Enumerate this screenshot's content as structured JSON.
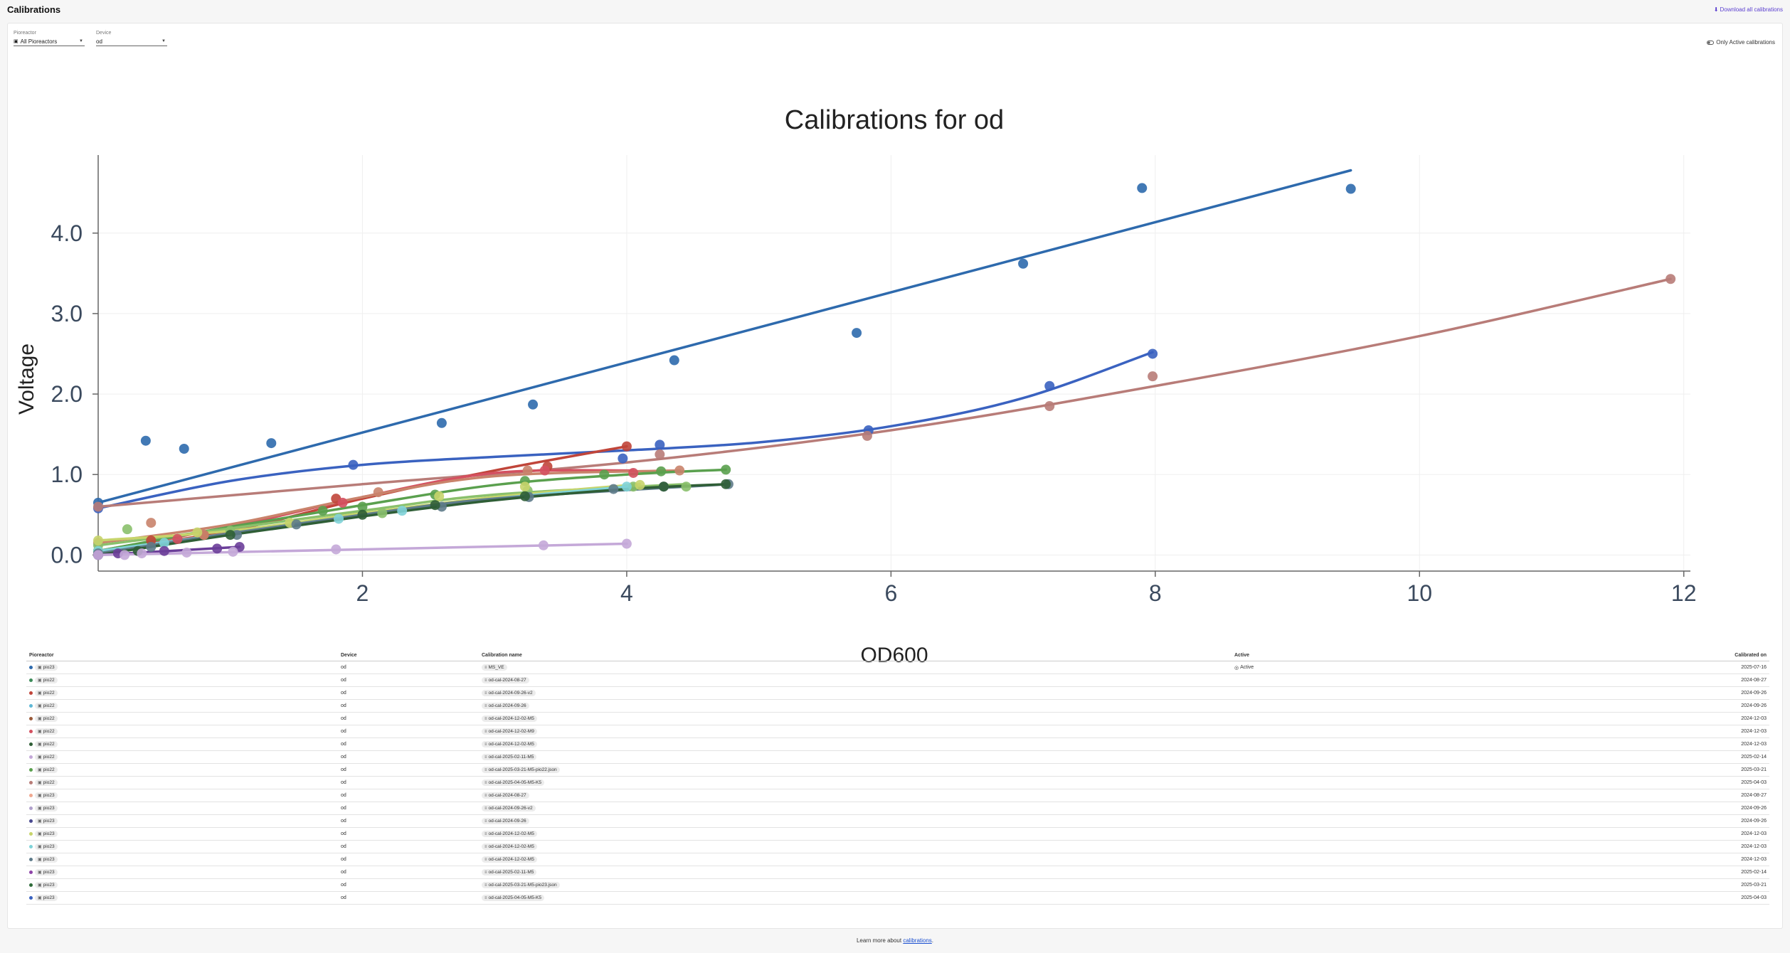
{
  "header": {
    "title": "Calibrations",
    "download_label": "Download all calibrations",
    "download_icon": "download-icon"
  },
  "filters": {
    "pioreactor_label": "Pioreactor",
    "pioreactor_value": "All Pioreactors",
    "device_label": "Device",
    "device_value": "od"
  },
  "toggle": {
    "label": "Only Active calibrations",
    "icon": "toggle-off-icon"
  },
  "chart_data": {
    "type": "scatter",
    "title": "Calibrations for od",
    "xlabel": "OD600",
    "ylabel": "Voltage",
    "xlim": [
      0,
      12.05
    ],
    "ylim": [
      -0.2,
      4.97
    ],
    "xticks": [
      2,
      4,
      6,
      8,
      10,
      12
    ],
    "yticks": [
      0,
      1,
      2,
      3,
      4
    ],
    "xtick_labels": [
      "2",
      "4",
      "6",
      "8",
      "10",
      "12"
    ],
    "ytick_labels": [
      "0.0",
      "1.0",
      "2.0",
      "3.0",
      "4.0"
    ],
    "grid": true,
    "series": [
      {
        "color": "#2e6aad",
        "points": [
          [
            0,
            0.65
          ],
          [
            0.36,
            1.42
          ],
          [
            0.65,
            1.32
          ],
          [
            1.31,
            1.39
          ],
          [
            2.6,
            1.64
          ],
          [
            3.29,
            1.87
          ],
          [
            4.36,
            2.42
          ],
          [
            5.74,
            2.76
          ],
          [
            7.0,
            3.62
          ],
          [
            7.9,
            4.56
          ],
          [
            9.48,
            4.55
          ]
        ],
        "curve": [
          [
            0,
            0.65
          ],
          [
            9.48,
            4.78
          ]
        ]
      },
      {
        "color": "#3a62c0",
        "points": [
          [
            0,
            0.58
          ],
          [
            1.93,
            1.12
          ],
          [
            4.25,
            1.37
          ],
          [
            5.83,
            1.55
          ],
          [
            7.2,
            2.1
          ],
          [
            7.98,
            2.5
          ],
          [
            3.97,
            1.2
          ]
        ],
        "curve": [
          [
            0,
            0.58
          ],
          [
            1.0,
            0.92
          ],
          [
            2.0,
            1.12
          ],
          [
            3.0,
            1.22
          ],
          [
            4.0,
            1.3
          ],
          [
            5.0,
            1.4
          ],
          [
            6.0,
            1.6
          ],
          [
            7.0,
            1.95
          ],
          [
            7.98,
            2.52
          ]
        ]
      },
      {
        "color": "#b87c78",
        "points": [
          [
            0,
            0.6
          ],
          [
            4.25,
            1.25
          ],
          [
            5.82,
            1.48
          ],
          [
            7.2,
            1.85
          ],
          [
            7.98,
            2.22
          ],
          [
            11.9,
            3.43
          ]
        ],
        "curve": [
          [
            0,
            0.6
          ],
          [
            2,
            0.88
          ],
          [
            4,
            1.15
          ],
          [
            6,
            1.55
          ],
          [
            8,
            2.1
          ],
          [
            10,
            2.72
          ],
          [
            11.9,
            3.43
          ]
        ]
      },
      {
        "color": "#c0453a",
        "points": [
          [
            0,
            0.05
          ],
          [
            0.4,
            0.18
          ],
          [
            1.8,
            0.7
          ],
          [
            3.4,
            1.1
          ],
          [
            4.0,
            1.35
          ],
          [
            0.8,
            0.25
          ]
        ],
        "curve": [
          [
            0,
            0.05
          ],
          [
            1,
            0.3
          ],
          [
            2,
            0.7
          ],
          [
            3,
            1.05
          ],
          [
            4,
            1.35
          ]
        ]
      },
      {
        "color": "#d45060",
        "points": [
          [
            0,
            0.05
          ],
          [
            1.85,
            0.65
          ],
          [
            3.38,
            1.05
          ],
          [
            4.05,
            1.02
          ],
          [
            0.6,
            0.2
          ]
        ],
        "curve": [
          [
            0,
            0.05
          ],
          [
            1,
            0.35
          ],
          [
            2,
            0.72
          ],
          [
            3,
            1.02
          ],
          [
            4.05,
            1.05
          ]
        ]
      },
      {
        "color": "#c9836b",
        "points": [
          [
            0,
            0.15
          ],
          [
            0.4,
            0.4
          ],
          [
            0.8,
            0.25
          ],
          [
            2.12,
            0.78
          ],
          [
            3.25,
            1.05
          ],
          [
            4.4,
            1.05
          ]
        ],
        "curve": [
          [
            0,
            0.15
          ],
          [
            1,
            0.38
          ],
          [
            2,
            0.72
          ],
          [
            3,
            0.98
          ],
          [
            4.4,
            1.05
          ]
        ]
      },
      {
        "color": "#5aa04e",
        "points": [
          [
            0,
            0.05
          ],
          [
            1.7,
            0.55
          ],
          [
            2.0,
            0.6
          ],
          [
            2.55,
            0.75
          ],
          [
            3.23,
            0.92
          ],
          [
            3.83,
            1.0
          ],
          [
            4.26,
            1.04
          ],
          [
            4.75,
            1.06
          ]
        ],
        "curve": [
          [
            0,
            0.05
          ],
          [
            1,
            0.35
          ],
          [
            2,
            0.62
          ],
          [
            3,
            0.87
          ],
          [
            4,
            1.0
          ],
          [
            4.75,
            1.06
          ]
        ]
      },
      {
        "color": "#8ac06b",
        "points": [
          [
            0,
            0.12
          ],
          [
            0.22,
            0.32
          ],
          [
            1.0,
            0.3
          ],
          [
            2.15,
            0.52
          ],
          [
            3.25,
            0.8
          ],
          [
            4.05,
            0.85
          ],
          [
            4.45,
            0.85
          ]
        ],
        "curve": [
          [
            0,
            0.12
          ],
          [
            1,
            0.33
          ],
          [
            2,
            0.55
          ],
          [
            3,
            0.75
          ],
          [
            4.45,
            0.88
          ]
        ]
      },
      {
        "color": "#c7d46b",
        "points": [
          [
            0,
            0.18
          ],
          [
            0.75,
            0.28
          ],
          [
            1.45,
            0.4
          ],
          [
            2.58,
            0.73
          ],
          [
            3.23,
            0.85
          ],
          [
            4.1,
            0.87
          ]
        ],
        "curve": [
          [
            0,
            0.18
          ],
          [
            1,
            0.3
          ],
          [
            2,
            0.52
          ],
          [
            3,
            0.72
          ],
          [
            4.1,
            0.88
          ]
        ]
      },
      {
        "color": "#7fd3d8",
        "points": [
          [
            0,
            0.05
          ],
          [
            1.82,
            0.45
          ],
          [
            2.3,
            0.55
          ],
          [
            4.0,
            0.85
          ],
          [
            0.5,
            0.15
          ]
        ],
        "curve": [
          [
            0,
            0.05
          ],
          [
            1,
            0.27
          ],
          [
            2,
            0.5
          ],
          [
            3,
            0.7
          ],
          [
            4.0,
            0.85
          ]
        ]
      },
      {
        "color": "#5e7b8a",
        "points": [
          [
            0,
            0.02
          ],
          [
            0.4,
            0.1
          ],
          [
            1.05,
            0.25
          ],
          [
            1.5,
            0.38
          ],
          [
            2.6,
            0.6
          ],
          [
            3.26,
            0.72
          ],
          [
            3.9,
            0.82
          ],
          [
            4.28,
            0.85
          ],
          [
            4.77,
            0.88
          ]
        ],
        "curve": [
          [
            0,
            0.02
          ],
          [
            1,
            0.27
          ],
          [
            2,
            0.5
          ],
          [
            3,
            0.7
          ],
          [
            4.77,
            0.88
          ]
        ]
      },
      {
        "color": "#2f5e36",
        "points": [
          [
            0,
            0.0
          ],
          [
            0.3,
            0.05
          ],
          [
            1.0,
            0.25
          ],
          [
            2.0,
            0.5
          ],
          [
            2.55,
            0.62
          ],
          [
            3.23,
            0.73
          ],
          [
            4.28,
            0.85
          ],
          [
            4.75,
            0.88
          ]
        ],
        "curve": [
          [
            0,
            0.0
          ],
          [
            1,
            0.25
          ],
          [
            2,
            0.48
          ],
          [
            3,
            0.68
          ],
          [
            4,
            0.82
          ],
          [
            4.75,
            0.88
          ]
        ]
      },
      {
        "color": "#6b3e99",
        "points": [
          [
            0,
            0.0
          ],
          [
            0.15,
            0.02
          ],
          [
            0.5,
            0.05
          ],
          [
            0.9,
            0.08
          ],
          [
            1.07,
            0.1
          ]
        ],
        "curve": [
          [
            0,
            0.0
          ],
          [
            1.07,
            0.1
          ]
        ]
      },
      {
        "color": "#c4a8d8",
        "points": [
          [
            0,
            0.0
          ],
          [
            0.2,
            0.0
          ],
          [
            0.33,
            0.02
          ],
          [
            0.67,
            0.03
          ],
          [
            1.02,
            0.04
          ],
          [
            1.8,
            0.07
          ],
          [
            3.37,
            0.12
          ],
          [
            4.0,
            0.14
          ]
        ],
        "curve": [
          [
            0,
            0.0
          ],
          [
            2,
            0.07
          ],
          [
            4.0,
            0.14
          ]
        ]
      }
    ]
  },
  "table": {
    "headers": {
      "unit": "Pioreactor",
      "device": "Device",
      "name": "Calibration name",
      "active": "Active",
      "date": "Calibrated on"
    },
    "active_label": "Active",
    "rows": [
      {
        "color": "#2e6aad",
        "unit": "pio23",
        "device": "od",
        "name": "MS_VE",
        "active": true,
        "date": "2025-07-16"
      },
      {
        "color": "#3d8c5a",
        "unit": "pio22",
        "device": "od",
        "name": "od-cal-2024-08-27",
        "active": false,
        "date": "2024-08-27"
      },
      {
        "color": "#c0453a",
        "unit": "pio22",
        "device": "od",
        "name": "od-cal-2024-09-26-v2",
        "active": false,
        "date": "2024-09-26"
      },
      {
        "color": "#5fb8d6",
        "unit": "pio22",
        "device": "od",
        "name": "od-cal-2024-09-26",
        "active": false,
        "date": "2024-09-26"
      },
      {
        "color": "#9a5a3a",
        "unit": "pio22",
        "device": "od",
        "name": "od-cal-2024-12-02-M5",
        "active": false,
        "date": "2024-12-03"
      },
      {
        "color": "#d45060",
        "unit": "pio22",
        "device": "od",
        "name": "od-cal-2024-12-02-M9",
        "active": false,
        "date": "2024-12-03"
      },
      {
        "color": "#2f5e36",
        "unit": "pio22",
        "device": "od",
        "name": "od-cal-2024-12-02-M5",
        "active": false,
        "date": "2024-12-03"
      },
      {
        "color": "#c4a8d8",
        "unit": "pio22",
        "device": "od",
        "name": "od-cal-2025-02-11-M5",
        "active": false,
        "date": "2025-02-14"
      },
      {
        "color": "#5aa04e",
        "unit": "pio22",
        "device": "od",
        "name": "od-cal-2025-03-21-M5-pio22.json",
        "active": false,
        "date": "2025-03-21"
      },
      {
        "color": "#b87c78",
        "unit": "pio22",
        "device": "od",
        "name": "od-cal-2025-04-05-M5-K5",
        "active": false,
        "date": "2025-04-03"
      },
      {
        "color": "#f0a890",
        "unit": "pio23",
        "device": "od",
        "name": "od-cal-2024-08-27",
        "active": false,
        "date": "2024-08-27"
      },
      {
        "color": "#b0a0cc",
        "unit": "pio23",
        "device": "od",
        "name": "od-cal-2024-09-26-v2",
        "active": false,
        "date": "2024-09-26"
      },
      {
        "color": "#4a4a90",
        "unit": "pio23",
        "device": "od",
        "name": "od-cal-2024-09-26",
        "active": false,
        "date": "2024-09-26"
      },
      {
        "color": "#c7d46b",
        "unit": "pio23",
        "device": "od",
        "name": "od-cal-2024-12-02-M5",
        "active": false,
        "date": "2024-12-03"
      },
      {
        "color": "#7fd3d8",
        "unit": "pio23",
        "device": "od",
        "name": "od-cal-2024-12-02-M5",
        "active": false,
        "date": "2024-12-03"
      },
      {
        "color": "#5e7b8a",
        "unit": "pio23",
        "device": "od",
        "name": "od-cal-2024-12-02-M5",
        "active": false,
        "date": "2024-12-03"
      },
      {
        "color": "#8e44a8",
        "unit": "pio23",
        "device": "od",
        "name": "od-cal-2025-02-11-M5",
        "active": false,
        "date": "2025-02-14"
      },
      {
        "color": "#2f6b3a",
        "unit": "pio23",
        "device": "od",
        "name": "od-cal-2025-03-21-M5-pio23.json",
        "active": false,
        "date": "2025-03-21"
      },
      {
        "color": "#3a62c0",
        "unit": "pio23",
        "device": "od",
        "name": "od-cal-2025-04-05-M5-K5",
        "active": false,
        "date": "2025-04-03"
      }
    ]
  },
  "footer": {
    "prefix": "Learn more about ",
    "link": "calibrations",
    "suffix": "."
  }
}
